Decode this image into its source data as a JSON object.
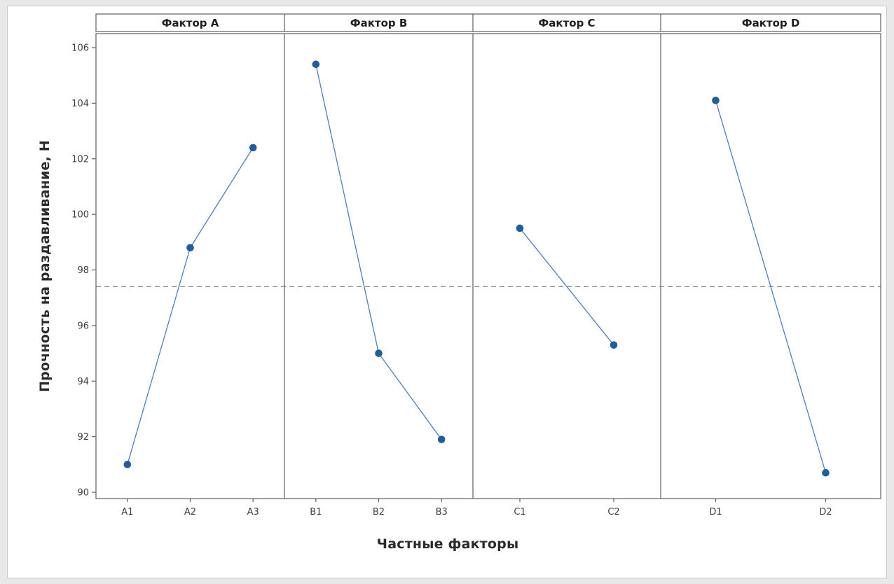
{
  "figure": {
    "background": "#e8e8e8",
    "canvas_background": "#ffffff",
    "border_color": "#c9c9c9"
  },
  "chart_data": {
    "type": "line",
    "subtype": "main-effects-plot",
    "title": "",
    "xlabel": "Частные факторы",
    "ylabel": "Прочность на раздавливание, Н",
    "ylim": [
      89.8,
      106.5
    ],
    "yticks": [
      90,
      92,
      94,
      96,
      98,
      100,
      102,
      104,
      106
    ],
    "grid": false,
    "legend": null,
    "mean_line": {
      "value": 97.4,
      "style": "dashed",
      "color": "#8f8f8f"
    },
    "panels": [
      {
        "title": "Фактор A",
        "categories": [
          "A1",
          "A2",
          "A3"
        ],
        "values": [
          91.0,
          98.8,
          102.4
        ]
      },
      {
        "title": "Фактор B",
        "categories": [
          "B1",
          "B2",
          "B3"
        ],
        "values": [
          105.4,
          95.0,
          91.9
        ]
      },
      {
        "title": "Фактор C",
        "categories": [
          "C1",
          "C2"
        ],
        "values": [
          99.5,
          95.3
        ]
      },
      {
        "title": "Фактор D",
        "categories": [
          "D1",
          "D2"
        ],
        "values": [
          104.1,
          90.7
        ]
      }
    ],
    "marker_color": "#1f5da3",
    "line_color": "#4d7dbf",
    "axis_color": "#5f5f5f",
    "tick_label_color": "#3d3d3d",
    "panel_title_color": "#1f1f1f"
  }
}
